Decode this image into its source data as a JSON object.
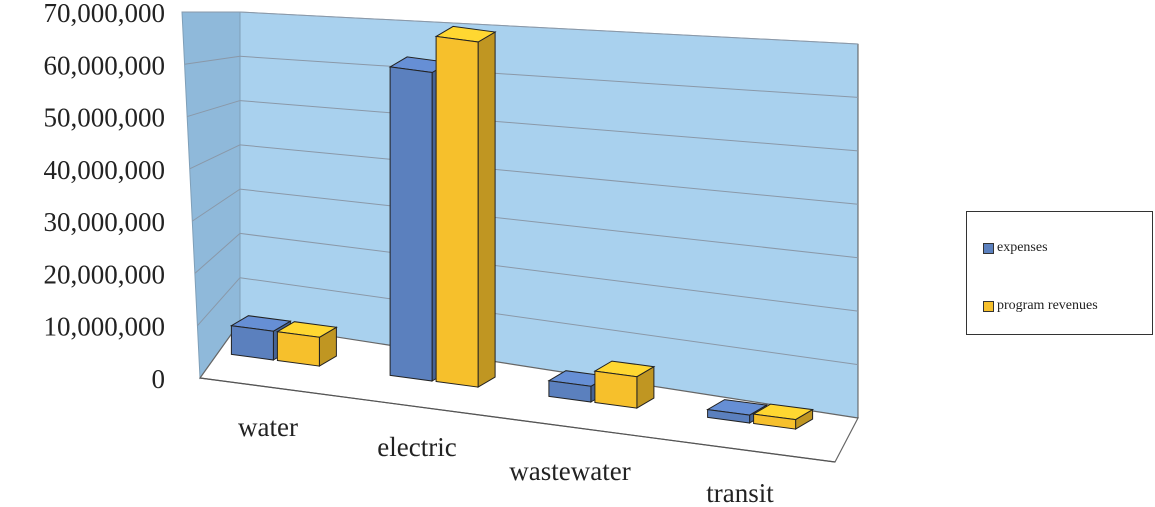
{
  "chart_data": {
    "type": "bar",
    "style": "3d-clustered-column",
    "categories": [
      "water",
      "electric",
      "wastewater",
      "transit"
    ],
    "series": [
      {
        "name": "expenses",
        "values": [
          5500000,
          59000000,
          3000000,
          1500000
        ]
      },
      {
        "name": "program revenues",
        "values": [
          5500000,
          66000000,
          6000000,
          1800000
        ]
      }
    ],
    "ylim": [
      0,
      70000000
    ],
    "yticks": [
      0,
      10000000,
      20000000,
      30000000,
      40000000,
      50000000,
      60000000,
      70000000
    ],
    "ytick_labels": [
      "0",
      "10,000,000",
      "20,000,000",
      "30,000,000",
      "40,000,000",
      "50,000,000",
      "60,000,000",
      "70,000,000"
    ],
    "grid": true,
    "legend_position": "right",
    "title": "",
    "xlabel": "",
    "ylabel": "",
    "colors": {
      "expenses": "#5b80be",
      "program revenues": "#f6c02c",
      "back_wall": "#a9d1ee",
      "side_wall": "#8fb9da",
      "floor": "#ffffff",
      "gridline": "#8a98a8"
    }
  }
}
